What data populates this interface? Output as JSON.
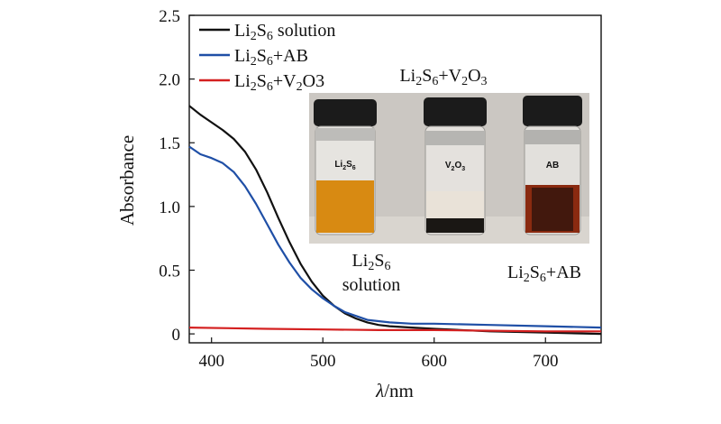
{
  "chart_data": {
    "type": "line",
    "xlabel_italic": "λ",
    "xlabel_unit": "/nm",
    "ylabel": "Absorbance",
    "xlim": [
      380,
      750
    ],
    "ylim": [
      -0.07,
      2.5
    ],
    "x_ticks": [
      400,
      500,
      600,
      700
    ],
    "x_tick_labels": [
      "400",
      "500",
      "600",
      "700"
    ],
    "y_ticks": [
      0,
      0.5,
      1.0,
      1.5,
      2.0,
      2.5
    ],
    "y_tick_labels": [
      "0",
      "0.5",
      "1.0",
      "1.5",
      "2.0",
      "2.5"
    ],
    "legend_position": "top-left",
    "series": [
      {
        "name": "Li2S6 solution",
        "color": "#111111",
        "x": [
          380,
          390,
          400,
          410,
          420,
          430,
          440,
          450,
          460,
          470,
          480,
          490,
          500,
          510,
          520,
          530,
          540,
          550,
          560,
          580,
          600,
          650,
          700,
          750
        ],
        "y": [
          1.79,
          1.72,
          1.66,
          1.6,
          1.53,
          1.43,
          1.29,
          1.11,
          0.91,
          0.72,
          0.55,
          0.41,
          0.3,
          0.22,
          0.16,
          0.12,
          0.09,
          0.07,
          0.06,
          0.05,
          0.04,
          0.02,
          0.01,
          0.0
        ]
      },
      {
        "name": "Li2S6+AB",
        "color": "#1f4fa6",
        "x": [
          380,
          390,
          400,
          410,
          420,
          430,
          440,
          450,
          460,
          470,
          480,
          490,
          500,
          510,
          520,
          530,
          540,
          550,
          560,
          580,
          600,
          650,
          700,
          750
        ],
        "y": [
          1.47,
          1.41,
          1.38,
          1.34,
          1.27,
          1.16,
          1.02,
          0.86,
          0.7,
          0.56,
          0.44,
          0.35,
          0.28,
          0.22,
          0.17,
          0.14,
          0.11,
          0.1,
          0.09,
          0.08,
          0.08,
          0.07,
          0.06,
          0.05
        ]
      },
      {
        "name": "Li2S6+V2O3",
        "color": "#d42020",
        "x": [
          380,
          450,
          500,
          550,
          600,
          650,
          700,
          750
        ],
        "y": [
          0.05,
          0.04,
          0.035,
          0.03,
          0.03,
          0.025,
          0.02,
          0.02
        ]
      }
    ],
    "legend": [
      {
        "pre": "Li",
        "sub1": "2",
        "mid": "S",
        "sub2": "6",
        "post": " solution",
        "sub3": "",
        "post2": "",
        "color": "#111111"
      },
      {
        "pre": "Li",
        "sub1": "2",
        "mid": "S",
        "sub2": "6",
        "post": "+AB",
        "sub3": "",
        "post2": "",
        "color": "#1f4fa6"
      },
      {
        "pre": "Li",
        "sub1": "2",
        "mid": "S",
        "sub2": "6",
        "post": "+V",
        "sub3": "2",
        "post2": "O3",
        "color": "#d42020"
      }
    ],
    "annotations": {
      "photo_title": "Li2S6+V2O3",
      "photo_bottom_left": "Li2S6 solution",
      "photo_bottom_right": "Li2S6+AB",
      "vial_labels": [
        "Li2S6",
        "V2O3",
        "AB"
      ]
    }
  }
}
